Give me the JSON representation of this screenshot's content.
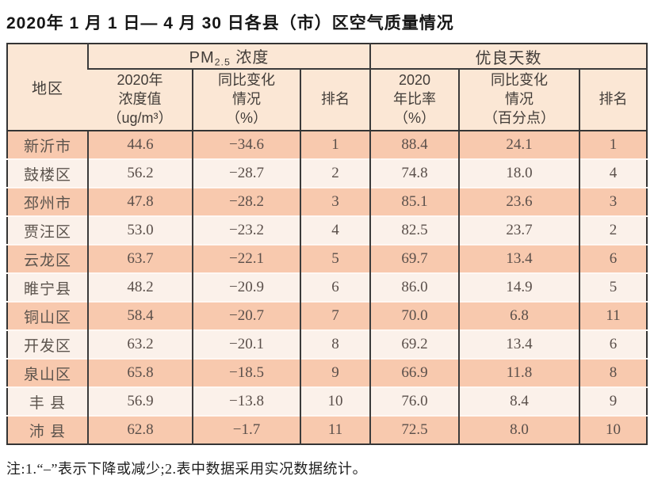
{
  "title": "2020年 1 月 1 日— 4 月 30 日各县（市）区空气质量情况",
  "table": {
    "region_header": "地区",
    "pm_group": {
      "prefix": "PM",
      "sub": "2.5",
      "suffix": " 浓度"
    },
    "good_days_group": "优良天数",
    "subheaders": {
      "pm_value": "2020年\n浓度值\n（ug/m³）",
      "pm_change": "同比变化\n情况\n（%）",
      "pm_rank": "排名",
      "good_ratio": "2020\n年比率\n（%）",
      "good_change": "同比变化\n情况\n（百分点）",
      "good_rank": "排名"
    },
    "rows": [
      {
        "region": "新沂市",
        "pm_value": "44.6",
        "pm_change": "−34.6",
        "pm_rank": "1",
        "ratio": "88.4",
        "ratio_change": "24.1",
        "rank": "1"
      },
      {
        "region": "鼓楼区",
        "pm_value": "56.2",
        "pm_change": "−28.7",
        "pm_rank": "2",
        "ratio": "74.8",
        "ratio_change": "18.0",
        "rank": "4"
      },
      {
        "region": "邳州市",
        "pm_value": "47.8",
        "pm_change": "−28.2",
        "pm_rank": "3",
        "ratio": "85.1",
        "ratio_change": "23.6",
        "rank": "3"
      },
      {
        "region": "贾汪区",
        "pm_value": "53.0",
        "pm_change": "−23.2",
        "pm_rank": "4",
        "ratio": "82.5",
        "ratio_change": "23.7",
        "rank": "2"
      },
      {
        "region": "云龙区",
        "pm_value": "63.7",
        "pm_change": "−22.1",
        "pm_rank": "5",
        "ratio": "69.7",
        "ratio_change": "13.4",
        "rank": "6"
      },
      {
        "region": "睢宁县",
        "pm_value": "48.2",
        "pm_change": "−20.9",
        "pm_rank": "6",
        "ratio": "86.0",
        "ratio_change": "14.9",
        "rank": "5"
      },
      {
        "region": "铜山区",
        "pm_value": "58.4",
        "pm_change": "−20.7",
        "pm_rank": "7",
        "ratio": "70.0",
        "ratio_change": "6.8",
        "rank": "11"
      },
      {
        "region": "开发区",
        "pm_value": "63.2",
        "pm_change": "−20.1",
        "pm_rank": "8",
        "ratio": "69.2",
        "ratio_change": "13.4",
        "rank": "6"
      },
      {
        "region": "泉山区",
        "pm_value": "65.8",
        "pm_change": "−18.5",
        "pm_rank": "9",
        "ratio": "66.9",
        "ratio_change": "11.8",
        "rank": "8"
      },
      {
        "region": "丰 县",
        "pm_value": "56.9",
        "pm_change": "−13.8",
        "pm_rank": "10",
        "ratio": "76.0",
        "ratio_change": "8.4",
        "rank": "9"
      },
      {
        "region": "沛 县",
        "pm_value": "62.8",
        "pm_change": "−1.7",
        "pm_rank": "11",
        "ratio": "72.5",
        "ratio_change": "8.0",
        "rank": "10"
      }
    ]
  },
  "note": "注:1.“–”表示下降或减少;2.表中数据采用实况数据统计。",
  "colors": {
    "row_odd": "#f8c9ae",
    "row_even": "#fbf1ea",
    "header_bg": "#fbe7d5",
    "border": "#343434",
    "text": "#5a4f4a"
  },
  "chart_data": {
    "type": "table",
    "title": "2020年 1 月 1 日— 4 月 30 日各县（市）区空气质量情况",
    "columns": [
      "地区",
      "PM2.5浓度 2020年浓度值（ug/m³）",
      "PM2.5浓度 同比变化情况（%）",
      "PM2.5浓度 排名",
      "优良天数 2020年比率（%）",
      "优良天数 同比变化情况（百分点）",
      "优良天数 排名"
    ],
    "rows": [
      [
        "新沂市",
        44.6,
        -34.6,
        1,
        88.4,
        24.1,
        1
      ],
      [
        "鼓楼区",
        56.2,
        -28.7,
        2,
        74.8,
        18.0,
        4
      ],
      [
        "邳州市",
        47.8,
        -28.2,
        3,
        85.1,
        23.6,
        3
      ],
      [
        "贾汪区",
        53.0,
        -23.2,
        4,
        82.5,
        23.7,
        2
      ],
      [
        "云龙区",
        63.7,
        -22.1,
        5,
        69.7,
        13.4,
        6
      ],
      [
        "睢宁县",
        48.2,
        -20.9,
        6,
        86.0,
        14.9,
        5
      ],
      [
        "铜山区",
        58.4,
        -20.7,
        7,
        70.0,
        6.8,
        11
      ],
      [
        "开发区",
        63.2,
        -20.1,
        8,
        69.2,
        13.4,
        6
      ],
      [
        "泉山区",
        65.8,
        -18.5,
        9,
        66.9,
        11.8,
        8
      ],
      [
        "丰县",
        56.9,
        -13.8,
        10,
        76.0,
        8.4,
        9
      ],
      [
        "沛县",
        62.8,
        -1.7,
        11,
        72.5,
        8.0,
        10
      ]
    ]
  }
}
